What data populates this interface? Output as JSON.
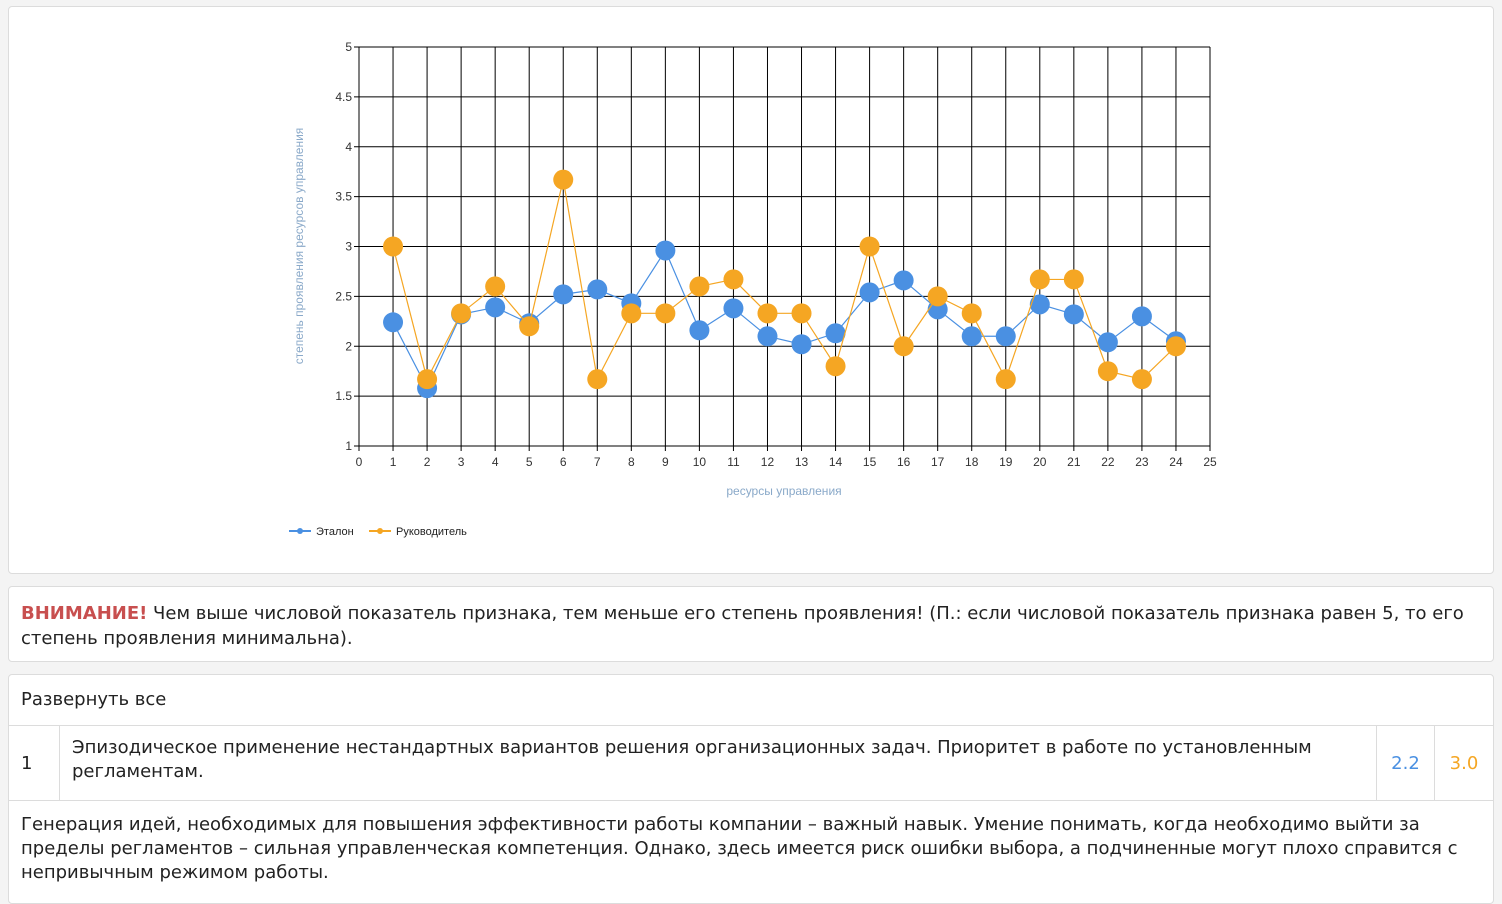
{
  "colors": {
    "etalon": "#4a90e2",
    "leader": "#f5a623",
    "warning": "#c84f4f",
    "axis_title": "#8aa9c9"
  },
  "chart_data": {
    "type": "line",
    "xlabel": "ресурсы управления",
    "ylabel": "степень проявления ресурсов управления",
    "xlim": [
      0,
      25
    ],
    "ylim": [
      1,
      5
    ],
    "x_ticks": [
      0,
      1,
      2,
      3,
      4,
      5,
      6,
      7,
      8,
      9,
      10,
      11,
      12,
      13,
      14,
      15,
      16,
      17,
      18,
      19,
      20,
      21,
      22,
      23,
      24,
      25
    ],
    "y_ticks": [
      1,
      1.5,
      2,
      2.5,
      3,
      3.5,
      4,
      4.5,
      5
    ],
    "y_tick_labels": [
      "1",
      "1.5",
      "2",
      "2.5",
      "3",
      "3.5",
      "4",
      "4.5",
      "5"
    ],
    "grid": true,
    "legend_position": "bottom-left",
    "x": [
      1,
      2,
      3,
      4,
      5,
      6,
      7,
      8,
      9,
      10,
      11,
      12,
      13,
      14,
      15,
      16,
      17,
      18,
      19,
      20,
      21,
      22,
      23,
      24
    ],
    "series": [
      {
        "name": "Эталон",
        "color": "#4a90e2",
        "values": [
          2.24,
          1.58,
          2.32,
          2.39,
          2.23,
          2.52,
          2.57,
          2.43,
          2.96,
          2.16,
          2.38,
          2.1,
          2.02,
          2.13,
          2.54,
          2.66,
          2.37,
          2.1,
          2.1,
          2.42,
          2.32,
          2.04,
          2.3,
          2.05
        ]
      },
      {
        "name": "Руководитель",
        "color": "#f5a623",
        "values": [
          3.0,
          1.67,
          2.33,
          2.6,
          2.2,
          3.67,
          1.67,
          2.33,
          2.33,
          2.6,
          2.67,
          2.33,
          2.33,
          1.8,
          3.0,
          2.0,
          2.5,
          2.33,
          1.67,
          2.67,
          2.67,
          1.75,
          1.67,
          2.0
        ]
      }
    ]
  },
  "notice": {
    "warning_label": "ВНИМАНИЕ!",
    "text": " Чем выше числовой показатель признака, тем меньше его степень проявления! (П.: если числовой показатель признака равен 5, то его степень проявления минимальна)."
  },
  "list": {
    "expand_all_label": "Развернуть все",
    "items": [
      {
        "number": "1",
        "title": "Эпизодическое применение нестандартных вариантов решения организационных задач. Приоритет в работе по установленным регламентам.",
        "value_etalon": "2.2",
        "value_leader": "3.0",
        "description": "Генерация идей, необходимых для повышения эффективности работы компании – важный навык. Умение понимать, когда необходимо выйти за пределы регламентов – сильная управленческая компетенция. Однако, здесь имеется риск ошибки выбора, а подчиненные могут плохо справится с непривычным режимом работы."
      }
    ]
  }
}
